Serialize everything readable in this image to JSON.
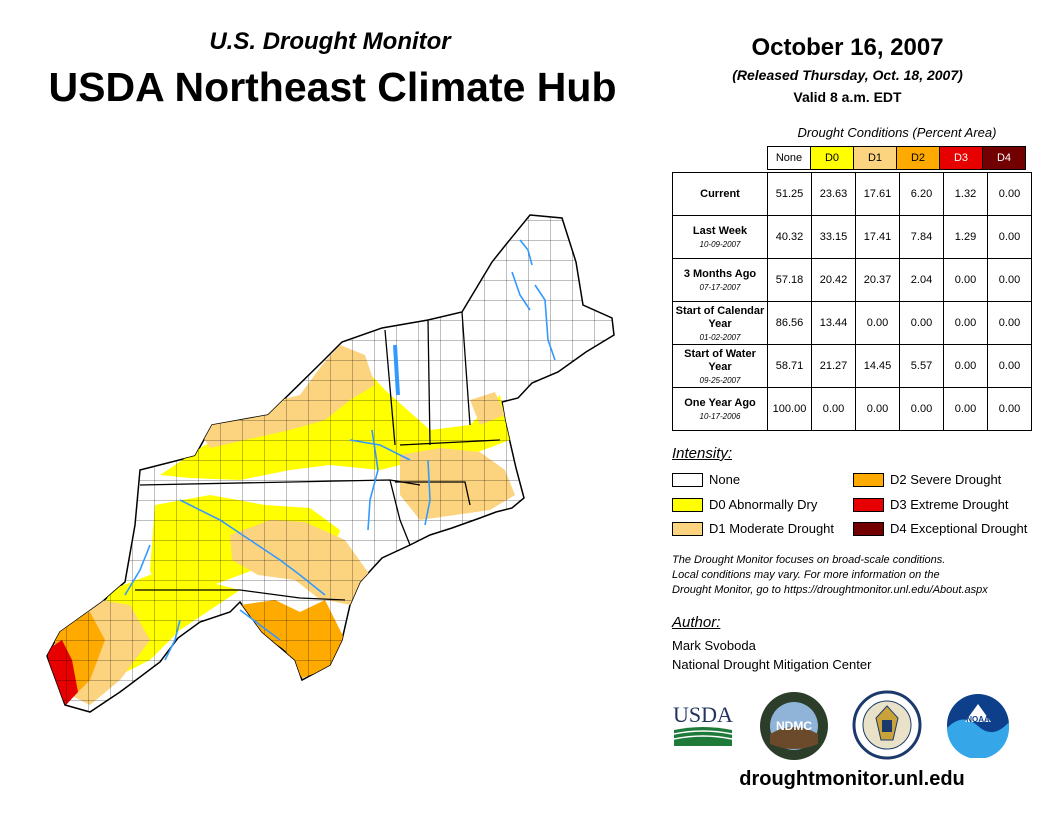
{
  "header": {
    "subtitle": "U.S. Drought Monitor",
    "title": "USDA Northeast Climate Hub"
  },
  "date": {
    "title": "October 16, 2007",
    "released": "(Released Thursday, Oct. 18, 2007)",
    "valid": "Valid 8 a.m. EDT"
  },
  "table": {
    "caption": "Drought Conditions (Percent Area)",
    "columns": [
      "None",
      "D0",
      "D1",
      "D2",
      "D3",
      "D4"
    ],
    "rows": [
      {
        "label": "Current",
        "date": "",
        "values": [
          "51.25",
          "23.63",
          "17.61",
          "6.20",
          "1.32",
          "0.00"
        ]
      },
      {
        "label": "Last Week",
        "date": "10-09-2007",
        "values": [
          "40.32",
          "33.15",
          "17.41",
          "7.84",
          "1.29",
          "0.00"
        ]
      },
      {
        "label": "3 Months Ago",
        "date": "07-17-2007",
        "values": [
          "57.18",
          "20.42",
          "20.37",
          "2.04",
          "0.00",
          "0.00"
        ]
      },
      {
        "label": "Start of Calendar Year",
        "date": "01-02-2007",
        "values": [
          "86.56",
          "13.44",
          "0.00",
          "0.00",
          "0.00",
          "0.00"
        ]
      },
      {
        "label": "Start of Water Year",
        "date": "09-25-2007",
        "values": [
          "58.71",
          "21.27",
          "14.45",
          "5.57",
          "0.00",
          "0.00"
        ]
      },
      {
        "label": "One Year Ago",
        "date": "10-17-2006",
        "values": [
          "100.00",
          "0.00",
          "0.00",
          "0.00",
          "0.00",
          "0.00"
        ]
      }
    ]
  },
  "legend": {
    "title": "Intensity:",
    "items": [
      {
        "label": "None",
        "color": "#ffffff"
      },
      {
        "label": "D0 Abnormally Dry",
        "color": "#ffff00"
      },
      {
        "label": "D1 Moderate Drought",
        "color": "#fcd37f"
      },
      {
        "label": "D2 Severe Drought",
        "color": "#ffaa00"
      },
      {
        "label": "D3 Extreme Drought",
        "color": "#e60000"
      },
      {
        "label": "D4 Exceptional Drought",
        "color": "#730000"
      }
    ]
  },
  "note": {
    "line1": "The Drought Monitor focuses on broad-scale conditions.",
    "line2": "Local conditions may vary. For more information on the",
    "line3": "Drought Monitor, go to https://droughtmonitor.unl.edu/About.aspx"
  },
  "author": {
    "label": "Author:",
    "name": "Mark Svoboda",
    "org": "National Drought Mitigation Center"
  },
  "logos": {
    "usda": "USDA",
    "ndmc": "NDMC",
    "noaa": "NOAA"
  },
  "footer": {
    "url": "droughtmonitor.unl.edu"
  },
  "colors": {
    "none": "#ffffff",
    "d0": "#ffff00",
    "d1": "#fcd37f",
    "d2": "#ffaa00",
    "d3": "#e60000",
    "d4": "#730000",
    "water": "#3399ff"
  }
}
